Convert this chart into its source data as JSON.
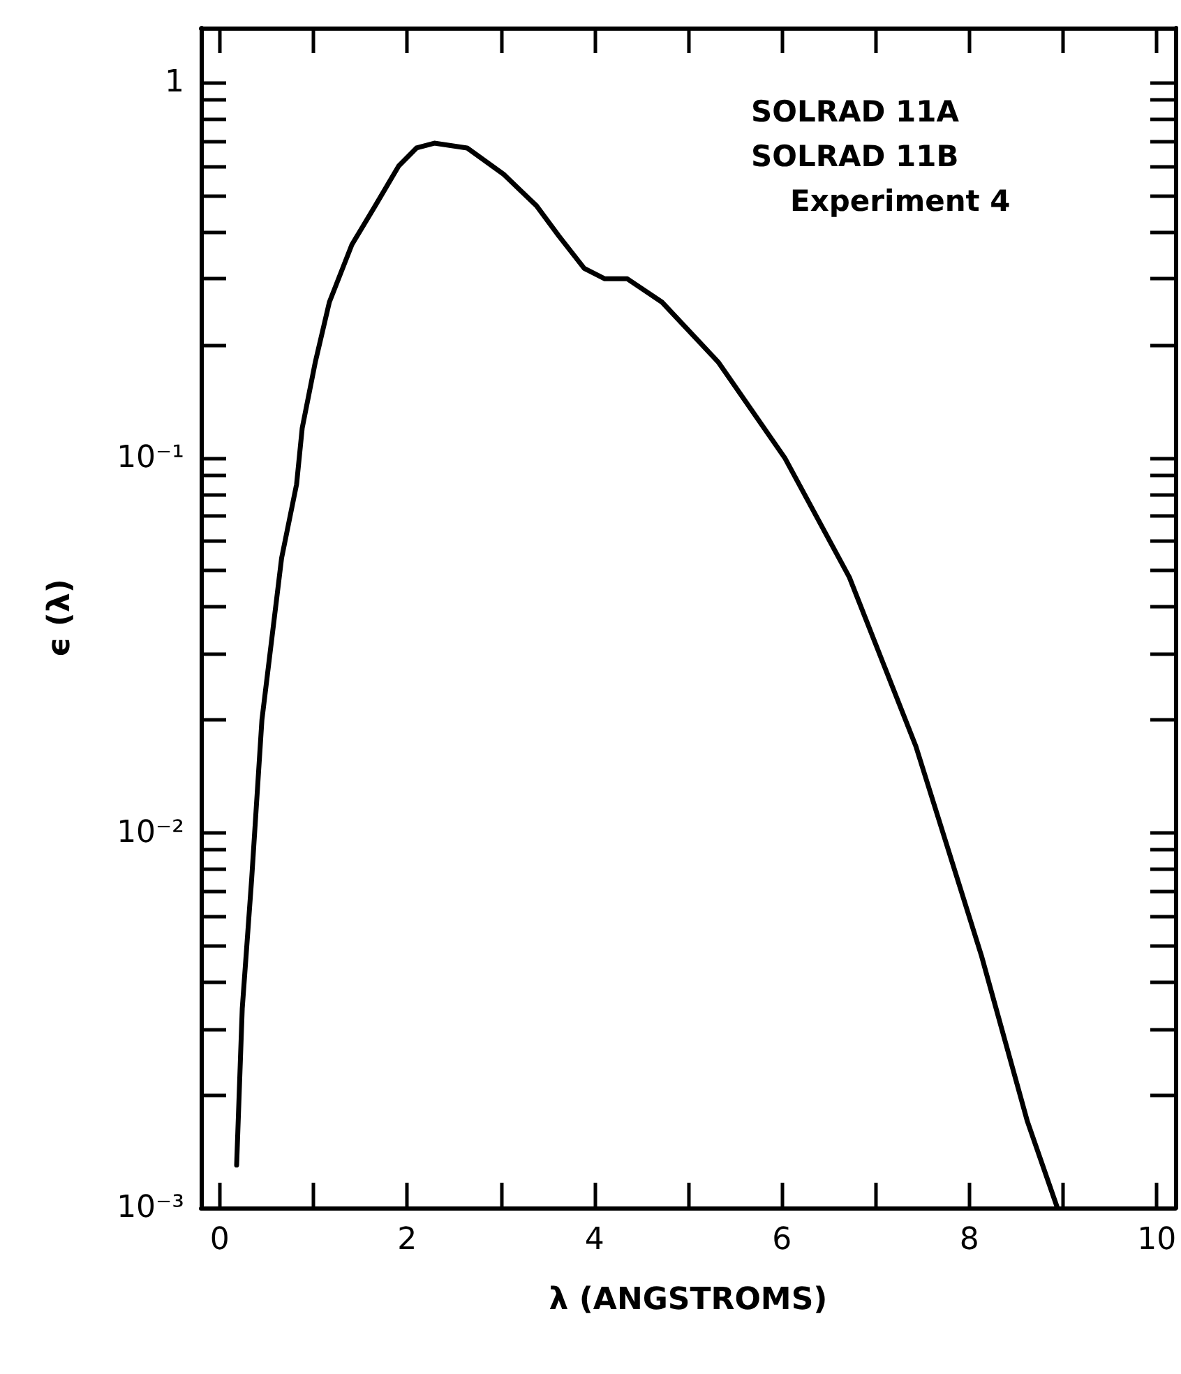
{
  "chart_data": {
    "type": "line",
    "xlabel": "λ (ANGSTROMS)",
    "ylabel": "ϵ (λ)",
    "annotations": [
      "SOLRAD 11A",
      "SOLRAD 11B",
      "Experiment 4"
    ],
    "log": "y",
    "grid": false,
    "marker": "none",
    "line_style": "solid",
    "xlim": [
      -0.2,
      10.2
    ],
    "xticks": [
      0,
      2,
      4,
      6,
      8,
      10
    ],
    "ylim": [
      0.001,
      1.4
    ],
    "yticks": [
      {
        "value": 0.001,
        "label": "10⁻³"
      },
      {
        "value": 0.01,
        "label": "10⁻²"
      },
      {
        "value": 0.1,
        "label": "10⁻¹"
      },
      1
    ],
    "series": [
      {
        "color": "#000000",
        "x": [
          0.18,
          0.24,
          0.34,
          0.45,
          0.66,
          0.82,
          0.88,
          1.02,
          1.17,
          1.41,
          1.66,
          1.91,
          2.1,
          2.29,
          2.64,
          3.03,
          3.38,
          3.62,
          3.89,
          4.11,
          4.35,
          4.72,
          5.32,
          6.03,
          6.72,
          7.43,
          8.13,
          8.62,
          8.94
        ],
        "values": [
          0.0013,
          0.0034,
          0.0075,
          0.02,
          0.054,
          0.085,
          0.12,
          0.18,
          0.26,
          0.37,
          0.47,
          0.6,
          0.67,
          0.69,
          0.67,
          0.57,
          0.47,
          0.39,
          0.32,
          0.3,
          0.3,
          0.26,
          0.18,
          0.1,
          0.048,
          0.017,
          0.0047,
          0.0017,
          0.001
        ]
      }
    ]
  }
}
